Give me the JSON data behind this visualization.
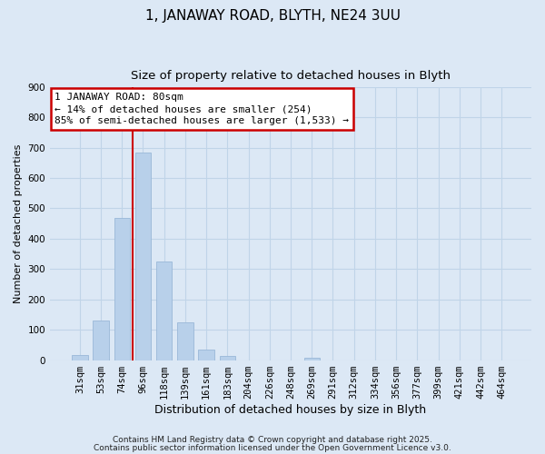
{
  "title": "1, JANAWAY ROAD, BLYTH, NE24 3UU",
  "subtitle": "Size of property relative to detached houses in Blyth",
  "xlabel": "Distribution of detached houses by size in Blyth",
  "ylabel": "Number of detached properties",
  "bar_labels": [
    "31sqm",
    "53sqm",
    "74sqm",
    "96sqm",
    "118sqm",
    "139sqm",
    "161sqm",
    "183sqm",
    "204sqm",
    "226sqm",
    "248sqm",
    "269sqm",
    "291sqm",
    "312sqm",
    "334sqm",
    "356sqm",
    "377sqm",
    "399sqm",
    "421sqm",
    "442sqm",
    "464sqm"
  ],
  "bar_values": [
    18,
    130,
    470,
    685,
    325,
    125,
    35,
    15,
    0,
    0,
    0,
    8,
    0,
    0,
    0,
    0,
    0,
    0,
    0,
    0,
    0
  ],
  "bar_color": "#b8d0ea",
  "bar_edge_color": "#9ab8d8",
  "vline_color": "#cc0000",
  "ylim": [
    0,
    900
  ],
  "yticks": [
    0,
    100,
    200,
    300,
    400,
    500,
    600,
    700,
    800,
    900
  ],
  "annotation_title": "1 JANAWAY ROAD: 80sqm",
  "annotation_line1": "← 14% of detached houses are smaller (254)",
  "annotation_line2": "85% of semi-detached houses are larger (1,533) →",
  "annotation_box_color": "#ffffff",
  "annotation_box_edge": "#cc0000",
  "grid_color": "#c0d4e8",
  "background_color": "#dce8f5",
  "footer_line1": "Contains HM Land Registry data © Crown copyright and database right 2025.",
  "footer_line2": "Contains public sector information licensed under the Open Government Licence v3.0.",
  "title_fontsize": 11,
  "subtitle_fontsize": 9.5,
  "xlabel_fontsize": 9,
  "ylabel_fontsize": 8,
  "tick_fontsize": 7.5,
  "footer_fontsize": 6.5
}
